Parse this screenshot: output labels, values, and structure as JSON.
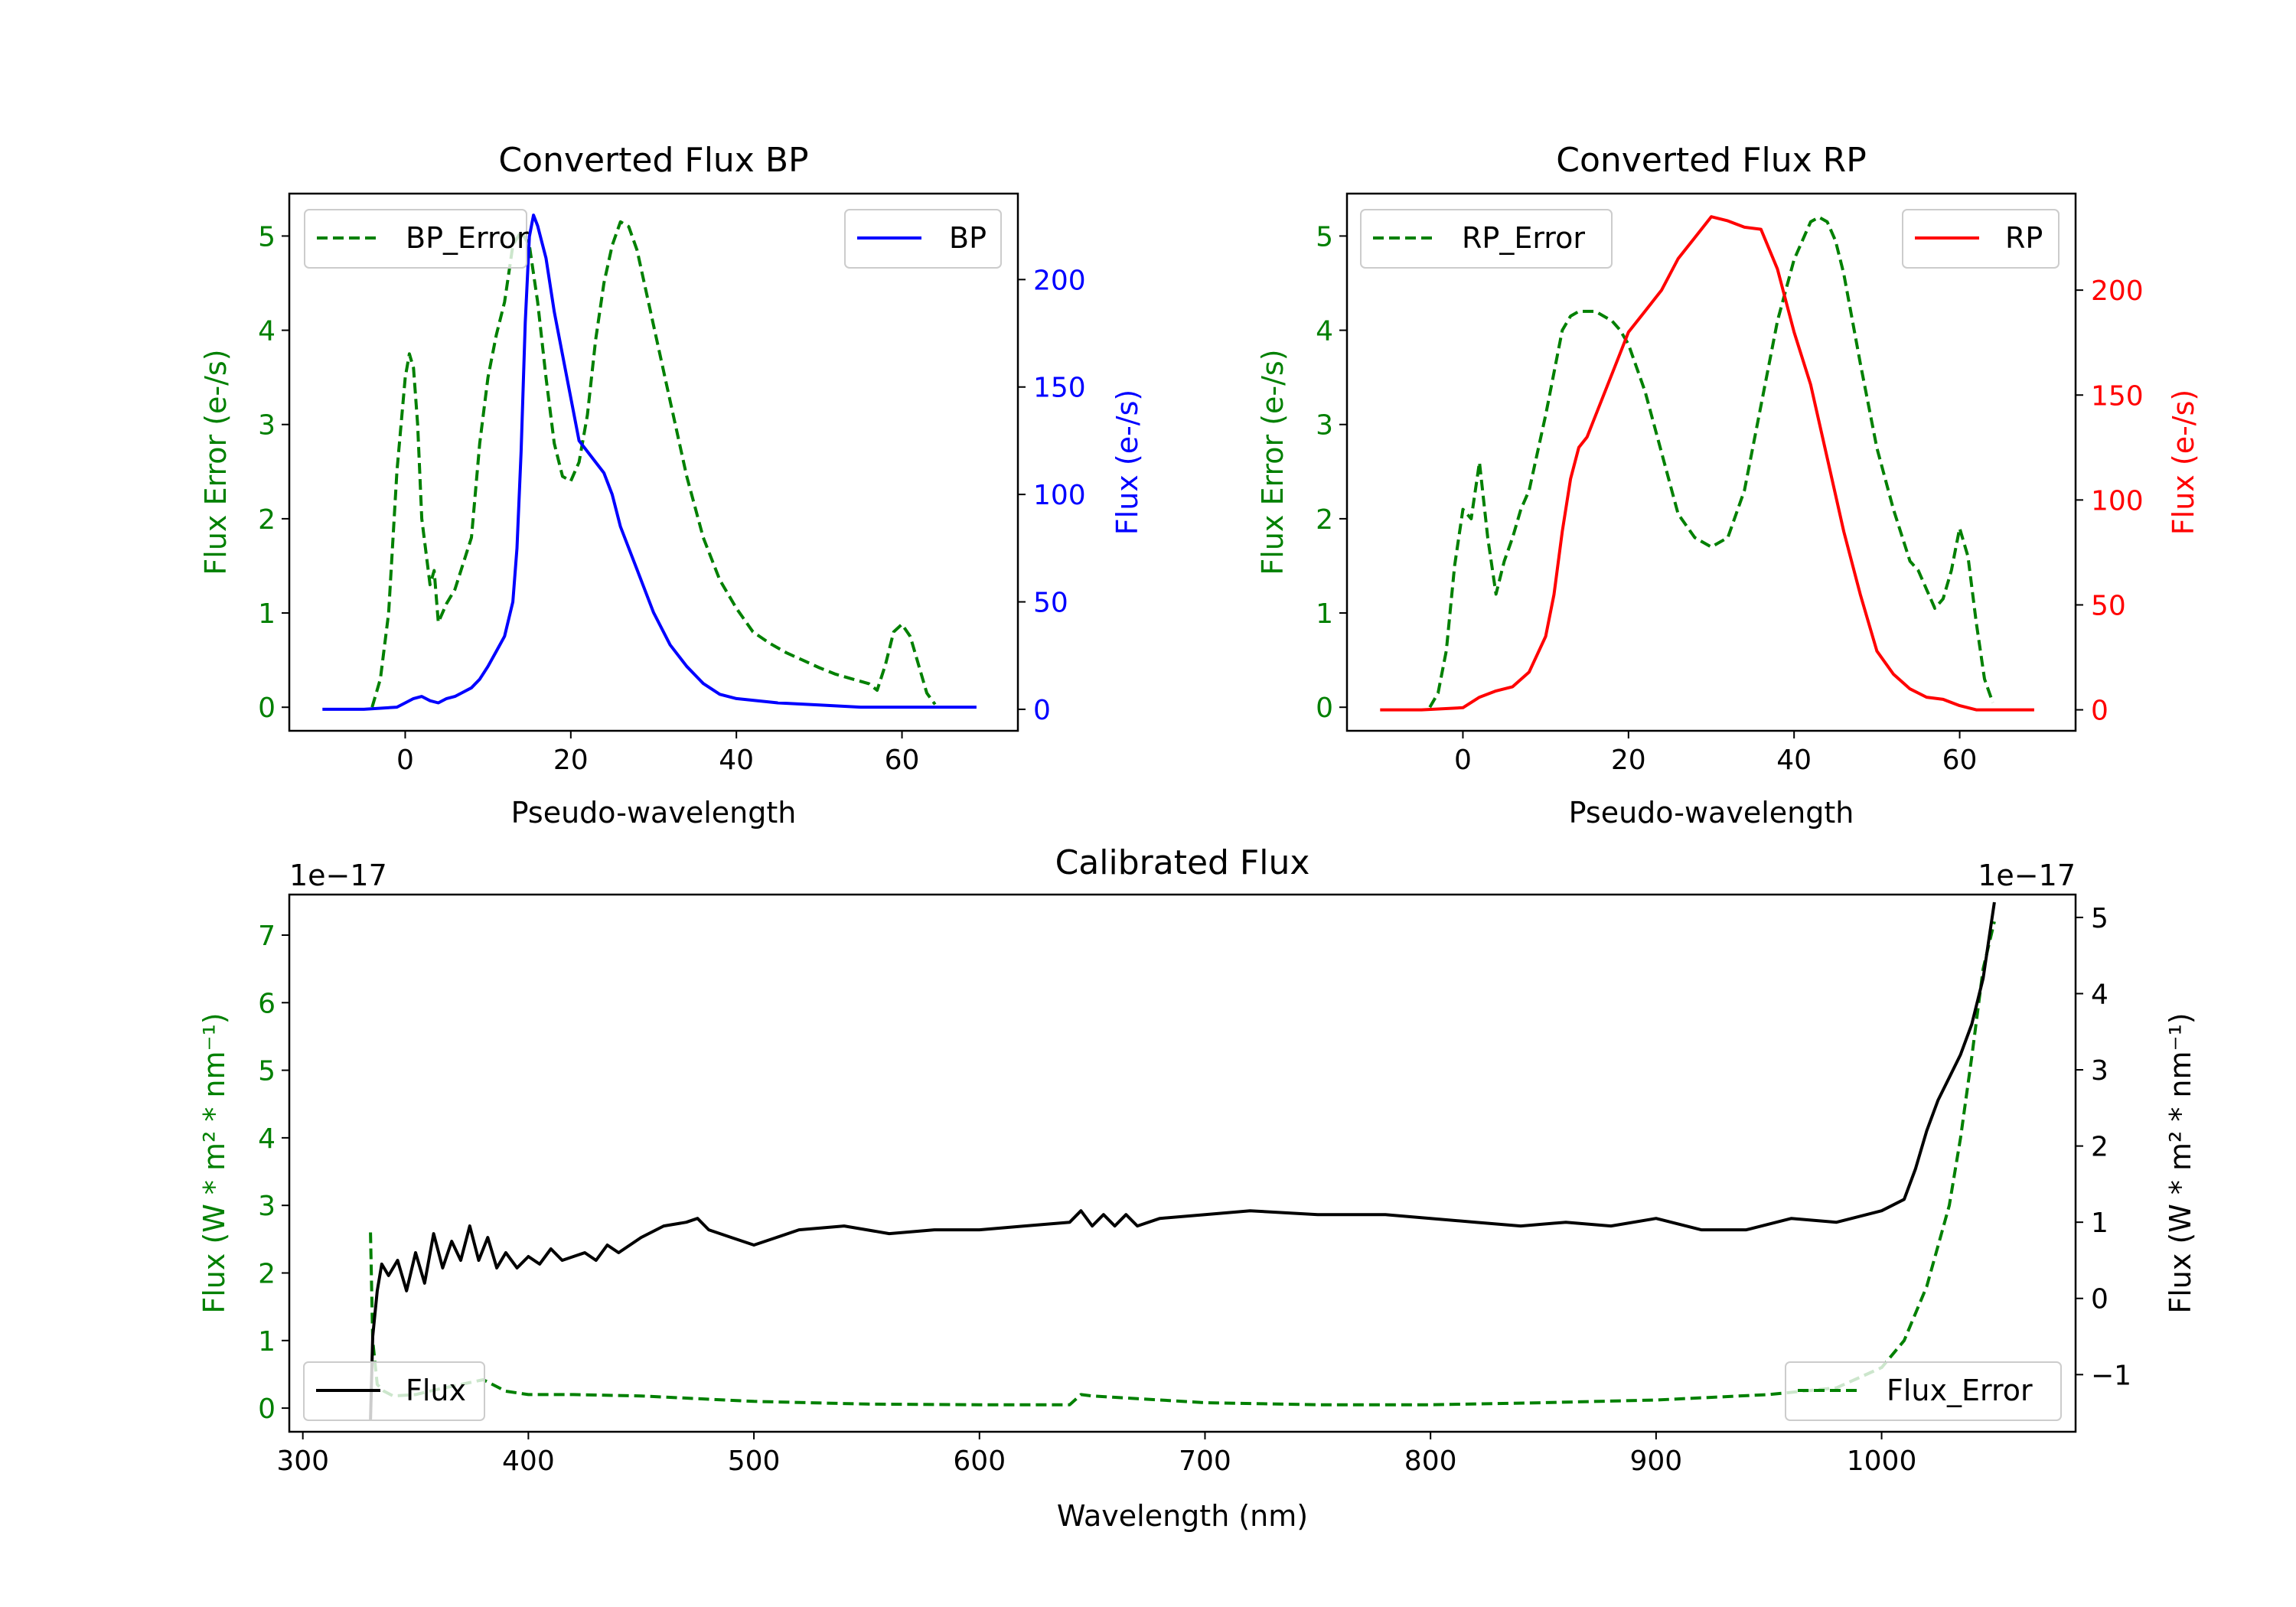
{
  "colors": {
    "bp": "#0000ff",
    "rp": "#ff0000",
    "error": "#008000",
    "flux": "#000000",
    "axis": "#000000"
  },
  "chart_data": [
    {
      "id": "bp",
      "type": "line",
      "title": "Converted Flux BP",
      "xlabel": "Pseudo-wavelength",
      "ylabel_left": "Flux Error (e-/s)",
      "ylabel_right": "Flux (e-/s)",
      "xlim": [
        -14,
        74
      ],
      "ylim_left": [
        -0.25,
        5.45
      ],
      "ylim_right": [
        -10,
        240
      ],
      "xticks": [
        0,
        20,
        40,
        60
      ],
      "yticks_left": [
        0,
        1,
        2,
        3,
        4,
        5
      ],
      "yticks_right": [
        0,
        50,
        100,
        150,
        200
      ],
      "left_color": "#008000",
      "right_color": "#0000ff",
      "legend_left": "BP_Error",
      "legend_right": "BP",
      "series": [
        {
          "name": "BP_Error",
          "axis": "left",
          "style": "dashed",
          "color": "#008000",
          "x": [
            -4,
            -3,
            -2,
            -1,
            0,
            0.5,
            1,
            1.5,
            2,
            3,
            3.5,
            4,
            5,
            6,
            8,
            9,
            10,
            11,
            12,
            13,
            14,
            15,
            16,
            17,
            18,
            19,
            20,
            21,
            22,
            23,
            24,
            25,
            26,
            27,
            28,
            30,
            32,
            34,
            36,
            38,
            40,
            42,
            44,
            46,
            48,
            50,
            52,
            54,
            56,
            57,
            58,
            59,
            60,
            61,
            62,
            63,
            64
          ],
          "values": [
            0,
            0.3,
            1.0,
            2.5,
            3.5,
            3.75,
            3.6,
            3.0,
            2.0,
            1.3,
            1.45,
            0.9,
            1.1,
            1.25,
            1.8,
            2.8,
            3.5,
            3.95,
            4.3,
            4.9,
            5.05,
            4.9,
            4.3,
            3.5,
            2.8,
            2.45,
            2.4,
            2.6,
            3.1,
            3.9,
            4.5,
            4.9,
            5.15,
            5.1,
            4.85,
            4.05,
            3.25,
            2.45,
            1.8,
            1.35,
            1.05,
            0.8,
            0.68,
            0.58,
            0.5,
            0.42,
            0.35,
            0.3,
            0.25,
            0.18,
            0.45,
            0.8,
            0.88,
            0.75,
            0.45,
            0.15,
            0.03
          ]
        },
        {
          "name": "BP",
          "axis": "right",
          "style": "solid",
          "color": "#0000ff",
          "x": [
            -10,
            -5,
            -1,
            0,
            1,
            2,
            3,
            4,
            5,
            6,
            7,
            8,
            9,
            10,
            11,
            12,
            13,
            13.5,
            14,
            14.5,
            15,
            15.5,
            16,
            17,
            18,
            19,
            20,
            21,
            22,
            23,
            24,
            25,
            26,
            28,
            30,
            32,
            34,
            36,
            38,
            40,
            45,
            50,
            55,
            60,
            65,
            69
          ],
          "values": [
            0,
            0,
            1,
            3,
            5,
            6,
            4,
            3,
            5,
            6,
            8,
            10,
            14,
            20,
            27,
            34,
            50,
            75,
            120,
            180,
            220,
            230,
            225,
            210,
            185,
            165,
            145,
            125,
            120,
            115,
            110,
            100,
            85,
            65,
            45,
            30,
            20,
            12,
            7,
            5,
            3,
            2,
            1,
            1,
            1,
            1
          ]
        }
      ]
    },
    {
      "id": "rp",
      "type": "line",
      "title": "Converted Flux RP",
      "xlabel": "Pseudo-wavelength",
      "ylabel_left": "Flux Error (e-/s)",
      "ylabel_right": "Flux (e-/s)",
      "xlim": [
        -14,
        74
      ],
      "ylim_left": [
        -0.25,
        5.45
      ],
      "ylim_right": [
        -10,
        246
      ],
      "xticks": [
        0,
        20,
        40,
        60
      ],
      "yticks_left": [
        0,
        1,
        2,
        3,
        4,
        5
      ],
      "yticks_right": [
        0,
        50,
        100,
        150,
        200
      ],
      "left_color": "#008000",
      "right_color": "#ff0000",
      "legend_left": "RP_Error",
      "legend_right": "RP",
      "series": [
        {
          "name": "RP_Error",
          "axis": "left",
          "style": "dashed",
          "color": "#008000",
          "x": [
            -4,
            -3,
            -2,
            -1,
            0,
            1,
            2,
            3,
            4,
            5,
            6,
            7,
            8,
            10,
            12,
            13,
            14,
            15,
            16,
            17,
            18,
            19,
            20,
            22,
            24,
            26,
            28,
            30,
            32,
            34,
            36,
            38,
            40,
            42,
            43,
            44,
            45,
            46,
            48,
            50,
            52,
            54,
            55,
            56,
            57,
            58,
            59,
            60,
            61,
            62,
            63,
            64
          ],
          "values": [
            0,
            0.15,
            0.6,
            1.5,
            2.1,
            2.0,
            2.6,
            1.8,
            1.2,
            1.55,
            1.8,
            2.1,
            2.3,
            3.1,
            4.0,
            4.15,
            4.2,
            4.2,
            4.2,
            4.15,
            4.1,
            4.0,
            3.85,
            3.35,
            2.7,
            2.05,
            1.8,
            1.7,
            1.8,
            2.3,
            3.2,
            4.1,
            4.75,
            5.15,
            5.2,
            5.15,
            4.95,
            4.6,
            3.65,
            2.75,
            2.1,
            1.55,
            1.45,
            1.25,
            1.05,
            1.15,
            1.45,
            1.9,
            1.6,
            0.9,
            0.3,
            0.05
          ]
        },
        {
          "name": "RP",
          "axis": "right",
          "style": "solid",
          "color": "#ff0000",
          "x": [
            -10,
            -5,
            0,
            2,
            4,
            6,
            8,
            10,
            11,
            12,
            13,
            14,
            15,
            16,
            18,
            20,
            22,
            24,
            26,
            28,
            30,
            32,
            34,
            36,
            38,
            40,
            42,
            44,
            46,
            48,
            50,
            52,
            54,
            56,
            58,
            60,
            62,
            65,
            69
          ],
          "values": [
            0,
            0,
            1,
            6,
            9,
            11,
            18,
            35,
            55,
            85,
            110,
            125,
            130,
            140,
            160,
            180,
            190,
            200,
            215,
            225,
            235,
            233,
            230,
            229,
            210,
            180,
            155,
            120,
            85,
            55,
            28,
            17,
            10,
            6,
            5,
            2,
            0,
            0,
            0
          ]
        }
      ]
    },
    {
      "id": "calibrated",
      "type": "line",
      "title": "Calibrated Flux",
      "xlabel": "Wavelength (nm)",
      "ylabel_left": "Flux (W * m² * nm⁻¹)",
      "ylabel_right": "Flux (W * m² * nm⁻¹)",
      "offset_left": "1e−17",
      "offset_right": "1e−17",
      "xlim": [
        294,
        1086
      ],
      "ylim_left": [
        -0.35,
        7.6
      ],
      "ylim_right": [
        -1.75,
        5.3
      ],
      "xticks": [
        300,
        400,
        500,
        600,
        700,
        800,
        900,
        1000
      ],
      "yticks_left": [
        0,
        1,
        2,
        3,
        4,
        5,
        6,
        7
      ],
      "yticks_right": [
        -1,
        0,
        1,
        2,
        3,
        4,
        5
      ],
      "ytick_labels_right": [
        "−1",
        "0",
        "1",
        "2",
        "3",
        "4",
        "5"
      ],
      "left_color": "#008000",
      "right_color": "#000000",
      "legend_left": "Flux",
      "legend_right": "Flux_Error",
      "series": [
        {
          "name": "Flux_Error",
          "axis": "left",
          "style": "dashed",
          "color": "#008000",
          "x": [
            330,
            331,
            333,
            336,
            340,
            350,
            360,
            370,
            380,
            390,
            400,
            420,
            450,
            500,
            550,
            600,
            640,
            645,
            650,
            700,
            750,
            800,
            850,
            900,
            950,
            980,
            1000,
            1010,
            1020,
            1030,
            1035,
            1040,
            1045,
            1050
          ],
          "values": [
            2.6,
            1.0,
            0.35,
            0.25,
            0.18,
            0.2,
            0.28,
            0.35,
            0.42,
            0.25,
            0.2,
            0.2,
            0.18,
            0.1,
            0.06,
            0.05,
            0.05,
            0.2,
            0.18,
            0.08,
            0.05,
            0.05,
            0.08,
            0.12,
            0.2,
            0.3,
            0.6,
            1.0,
            1.8,
            3.0,
            4.0,
            5.2,
            6.5,
            7.2
          ]
        },
        {
          "name": "Flux",
          "axis": "right",
          "style": "solid",
          "color": "#000000",
          "x": [
            330,
            331,
            333,
            335,
            338,
            342,
            346,
            350,
            354,
            358,
            362,
            366,
            370,
            374,
            378,
            382,
            386,
            390,
            395,
            400,
            405,
            410,
            415,
            420,
            425,
            430,
            435,
            440,
            450,
            460,
            470,
            475,
            480,
            490,
            500,
            510,
            520,
            540,
            560,
            580,
            600,
            620,
            640,
            645,
            650,
            655,
            660,
            665,
            670,
            680,
            700,
            720,
            750,
            780,
            800,
            820,
            840,
            860,
            880,
            900,
            920,
            940,
            960,
            980,
            1000,
            1010,
            1015,
            1020,
            1025,
            1030,
            1035,
            1040,
            1045,
            1050
          ],
          "values": [
            -1.6,
            -0.5,
            0.1,
            0.45,
            0.3,
            0.5,
            0.1,
            0.6,
            0.2,
            0.85,
            0.4,
            0.75,
            0.5,
            0.95,
            0.5,
            0.8,
            0.4,
            0.6,
            0.4,
            0.55,
            0.45,
            0.65,
            0.5,
            0.55,
            0.6,
            0.5,
            0.7,
            0.6,
            0.8,
            0.95,
            1.0,
            1.05,
            0.9,
            0.8,
            0.7,
            0.8,
            0.9,
            0.95,
            0.85,
            0.9,
            0.9,
            0.95,
            1.0,
            1.15,
            0.95,
            1.1,
            0.95,
            1.1,
            0.95,
            1.05,
            1.1,
            1.15,
            1.1,
            1.1,
            1.05,
            1.0,
            0.95,
            1.0,
            0.95,
            1.05,
            0.9,
            0.9,
            1.05,
            1.0,
            1.15,
            1.3,
            1.7,
            2.2,
            2.6,
            2.9,
            3.2,
            3.6,
            4.2,
            5.2
          ]
        }
      ]
    }
  ]
}
